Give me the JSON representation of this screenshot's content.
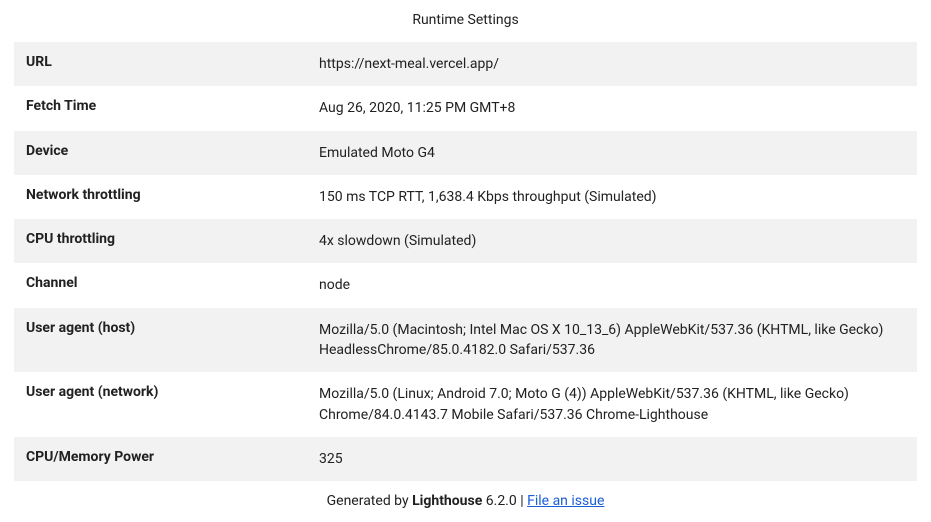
{
  "title": "Runtime Settings",
  "rows": [
    {
      "label": "URL",
      "value": "https://next-meal.vercel.app/"
    },
    {
      "label": "Fetch Time",
      "value": "Aug 26, 2020, 11:25 PM GMT+8"
    },
    {
      "label": "Device",
      "value": "Emulated Moto G4"
    },
    {
      "label": "Network throttling",
      "value": "150 ms TCP RTT, 1,638.4 Kbps throughput (Simulated)"
    },
    {
      "label": "CPU throttling",
      "value": "4x slowdown (Simulated)"
    },
    {
      "label": "Channel",
      "value": "node"
    },
    {
      "label": "User agent (host)",
      "value": "Mozilla/5.0 (Macintosh; Intel Mac OS X 10_13_6) AppleWebKit/537.36 (KHTML, like Gecko) HeadlessChrome/85.0.4182.0 Safari/537.36"
    },
    {
      "label": "User agent (network)",
      "value": "Mozilla/5.0 (Linux; Android 7.0; Moto G (4)) AppleWebKit/537.36 (KHTML, like Gecko) Chrome/84.0.4143.7 Mobile Safari/537.36 Chrome-Lighthouse"
    },
    {
      "label": "CPU/Memory Power",
      "value": "325"
    }
  ],
  "footer": {
    "generated_by": "Generated by ",
    "product_name": "Lighthouse",
    "version": " 6.2.0",
    "separator": " | ",
    "link_text": "File an issue"
  },
  "colors": {
    "row_alt_bg": "#f2f2f2",
    "row_bg": "#ffffff",
    "text": "#212121",
    "link": "#1a5dd7"
  }
}
